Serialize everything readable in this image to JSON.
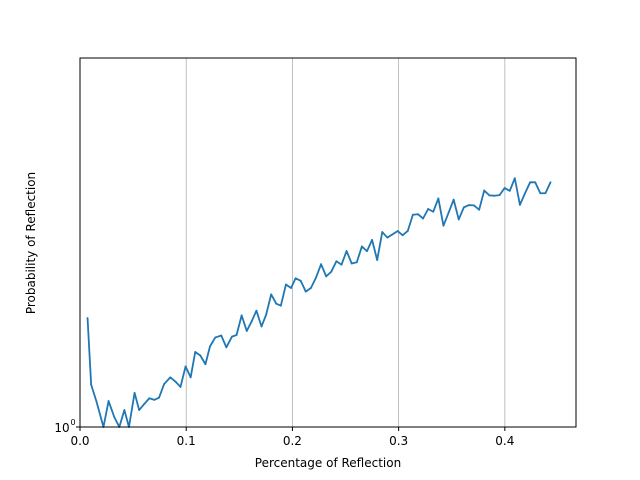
{
  "chart_data": {
    "type": "line",
    "title": "",
    "xlabel": "Percentage of Reflection",
    "ylabel": "Probability of Reflection",
    "xlim": [
      0.0,
      0.467
    ],
    "x_ticks": [
      0.0,
      0.1,
      0.2,
      0.3,
      0.4
    ],
    "x_tick_labels": [
      "0.0",
      "0.1",
      "0.2",
      "0.3",
      "0.4"
    ],
    "y_scale": "log",
    "y_ticks": [
      1
    ],
    "y_tick_labels": [
      "10^0"
    ],
    "ylim": [
      1.0,
      1.38
    ],
    "grid": "x-major-vertical",
    "line_color": "#1f77b4",
    "series": [
      {
        "x": [
          0.0071,
          0.0105,
          0.0153,
          0.0221,
          0.0269,
          0.0322,
          0.037,
          0.0418,
          0.0461,
          0.0514,
          0.0557,
          0.0605,
          0.0653,
          0.0701,
          0.0744,
          0.0792,
          0.085,
          0.0898,
          0.0946,
          0.0994,
          0.1042,
          0.1085,
          0.1133,
          0.1181,
          0.1224,
          0.1273,
          0.133,
          0.1378,
          0.1431,
          0.1474,
          0.1522,
          0.157,
          0.1618,
          0.1661,
          0.1709,
          0.1752,
          0.18,
          0.1848,
          0.1891,
          0.1939,
          0.1987,
          0.203,
          0.2078,
          0.2126,
          0.2174,
          0.2222,
          0.227,
          0.2318,
          0.2366,
          0.2414,
          0.2462,
          0.251,
          0.2558,
          0.2606,
          0.2654,
          0.2702,
          0.275,
          0.2798,
          0.2846,
          0.2894,
          0.2942,
          0.299,
          0.3038,
          0.3086,
          0.3134,
          0.3182,
          0.323,
          0.3278,
          0.3326,
          0.3374,
          0.3422,
          0.347,
          0.3518,
          0.3566,
          0.3614,
          0.3662,
          0.371,
          0.3758,
          0.3806,
          0.3854,
          0.3902,
          0.395,
          0.3998,
          0.4046,
          0.4094,
          0.4142,
          0.419,
          0.4238,
          0.4286,
          0.4334,
          0.4382,
          0.443
        ],
        "y": [
          1.0998,
          1.0377,
          1.0232,
          1.0,
          1.0229,
          1.0089,
          1.0,
          1.0149,
          1.0,
          1.0302,
          1.0149,
          1.0203,
          1.0254,
          1.024,
          1.0259,
          1.0382,
          1.0443,
          1.0405,
          1.0356,
          1.0543,
          1.0443,
          1.0677,
          1.0644,
          1.0563,
          1.0729,
          1.0812,
          1.0831,
          1.072,
          1.0821,
          1.0836,
          1.1023,
          1.0874,
          1.097,
          1.1069,
          1.0917,
          1.1028,
          1.1227,
          1.1136,
          1.1117,
          1.1324,
          1.129,
          1.1386,
          1.1361,
          1.1254,
          1.129,
          1.1393,
          1.1527,
          1.1405,
          1.1452,
          1.1557,
          1.1522,
          1.166,
          1.1534,
          1.1546,
          1.1707,
          1.1659,
          1.1774,
          1.1569,
          1.1855,
          1.1798,
          1.1831,
          1.1865,
          1.1822,
          1.1866,
          1.2035,
          1.2041,
          1.1996,
          1.2096,
          1.2067,
          1.2208,
          1.1921,
          1.2056,
          1.2195,
          1.1986,
          1.2113,
          1.2137,
          1.2134,
          1.2088,
          1.2293,
          1.2241,
          1.2237,
          1.2243,
          1.2319,
          1.2289,
          1.2425,
          1.214,
          1.2263,
          1.2381,
          1.2381,
          1.2263,
          1.2263,
          1.2381
        ]
      }
    ]
  }
}
